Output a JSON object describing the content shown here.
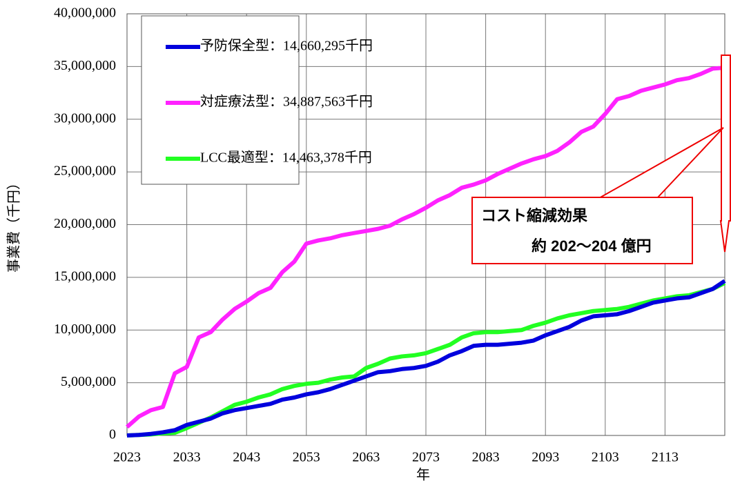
{
  "chart_data": {
    "type": "line",
    "y_label": "事業費（千円）",
    "x_label": "年",
    "annotation": [
      "コスト縮減効果",
      "約 202～204 億円"
    ],
    "x": [
      2023,
      2025,
      2027,
      2029,
      2031,
      2033,
      2035,
      2037,
      2039,
      2041,
      2043,
      2045,
      2047,
      2049,
      2051,
      2053,
      2055,
      2057,
      2059,
      2061,
      2063,
      2065,
      2067,
      2069,
      2071,
      2073,
      2075,
      2077,
      2079,
      2081,
      2083,
      2085,
      2087,
      2089,
      2091,
      2093,
      2095,
      2097,
      2099,
      2101,
      2103,
      2105,
      2107,
      2109,
      2111,
      2113,
      2115,
      2117,
      2119,
      2121,
      2123
    ],
    "series": [
      {
        "name": "予防保全型：14,660,295千円",
        "color": "#0000dd",
        "values": [
          0,
          50000,
          150000,
          300000,
          500000,
          1000000,
          1300000,
          1600000,
          2100000,
          2400000,
          2600000,
          2800000,
          3000000,
          3400000,
          3600000,
          3900000,
          4100000,
          4400000,
          4800000,
          5200000,
          5600000,
          6000000,
          6100000,
          6300000,
          6400000,
          6600000,
          7000000,
          7600000,
          8000000,
          8500000,
          8600000,
          8600000,
          8700000,
          8800000,
          9000000,
          9500000,
          9900000,
          10300000,
          10900000,
          11300000,
          11400000,
          11500000,
          11800000,
          12200000,
          12600000,
          12800000,
          13000000,
          13100000,
          13500000,
          13900000,
          14660295
        ]
      },
      {
        "name": "対症療法型：34,887,563千円",
        "color": "#ff22ff",
        "values": [
          800000,
          1800000,
          2400000,
          2700000,
          5900000,
          6500000,
          9300000,
          9800000,
          11000000,
          12000000,
          12700000,
          13500000,
          14000000,
          15500000,
          16500000,
          18200000,
          18500000,
          18700000,
          19000000,
          19200000,
          19400000,
          19600000,
          19900000,
          20500000,
          21000000,
          21600000,
          22300000,
          22800000,
          23500000,
          23800000,
          24200000,
          24800000,
          25300000,
          25800000,
          26200000,
          26500000,
          27000000,
          27800000,
          28800000,
          29300000,
          30500000,
          31900000,
          32200000,
          32700000,
          33000000,
          33300000,
          33700000,
          33900000,
          34300000,
          34800000,
          34887563
        ]
      },
      {
        "name": "LCC最適型：14,463,378千円",
        "color": "#22ff22",
        "values": [
          0,
          50000,
          100000,
          200000,
          250000,
          700000,
          1200000,
          1700000,
          2300000,
          2900000,
          3200000,
          3600000,
          3900000,
          4400000,
          4700000,
          4900000,
          5000000,
          5300000,
          5500000,
          5600000,
          6400000,
          6800000,
          7300000,
          7500000,
          7600000,
          7800000,
          8200000,
          8600000,
          9300000,
          9700000,
          9800000,
          9800000,
          9900000,
          10000000,
          10400000,
          10700000,
          11100000,
          11400000,
          11600000,
          11800000,
          11900000,
          12000000,
          12200000,
          12500000,
          12800000,
          13000000,
          13200000,
          13300000,
          13600000,
          13900000,
          14463378
        ]
      }
    ],
    "xlim": [
      2023,
      2123
    ],
    "xticks": [
      2023,
      2033,
      2043,
      2053,
      2063,
      2073,
      2083,
      2093,
      2103,
      2113
    ],
    "ylim": [
      0,
      40000000
    ],
    "yticks": [
      0,
      {
        "value": 5000000,
        "label": "5,000,000"
      },
      {
        "value": 10000000,
        "label": "10,000,000"
      },
      {
        "value": 15000000,
        "label": "15,000,000"
      },
      {
        "value": 20000000,
        "label": "20,000,000"
      },
      {
        "value": 25000000,
        "label": "25,000,000"
      },
      {
        "value": 30000000,
        "label": "30,000,000"
      },
      {
        "value": 35000000,
        "label": "35,000,000"
      },
      {
        "value": 40000000,
        "label": "40,000,000"
      }
    ],
    "grid": true
  }
}
